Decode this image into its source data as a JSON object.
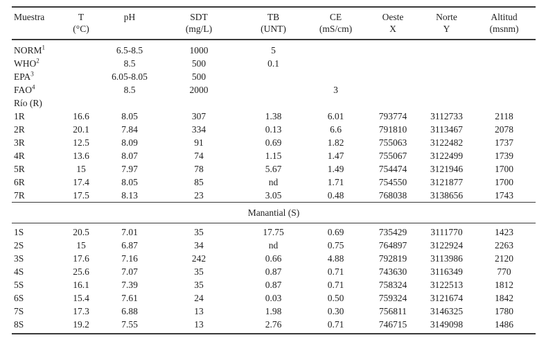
{
  "table": {
    "columns": [
      {
        "line1": "Muestra",
        "line2": ""
      },
      {
        "line1": "T",
        "line2": "(°C)"
      },
      {
        "line1": "pH",
        "line2": ""
      },
      {
        "line1": "SDT",
        "line2": "(mg/L)"
      },
      {
        "line1": "TB",
        "line2": "(UNT)"
      },
      {
        "line1": "CE",
        "line2": "(mS/cm)"
      },
      {
        "line1": "Oeste",
        "line2": "X"
      },
      {
        "line1": "Norte",
        "line2": "Y"
      },
      {
        "line1": "Altitud",
        "line2": "(msnm)"
      }
    ],
    "standards_rows": [
      {
        "label": "NORM",
        "sup": "1",
        "values": [
          "",
          "6.5-8.5",
          "1000",
          "5",
          "",
          "",
          "",
          ""
        ]
      },
      {
        "label": "WHO",
        "sup": "2",
        "values": [
          "",
          "8.5",
          "500",
          "0.1",
          "",
          "",
          "",
          ""
        ]
      },
      {
        "label": "EPA",
        "sup": "3",
        "values": [
          "",
          "6.05-8.05",
          "500",
          "",
          "",
          "",
          "",
          ""
        ]
      },
      {
        "label": "FAO",
        "sup": "4",
        "values": [
          "",
          "8.5",
          "2000",
          "",
          "3",
          "",
          "",
          ""
        ]
      }
    ],
    "rio_group_label": "Río (R)",
    "rio_rows": [
      [
        "1R",
        "16.6",
        "8.05",
        "307",
        "1.38",
        "6.01",
        "793774",
        "3112733",
        "2118"
      ],
      [
        "2R",
        "20.1",
        "7.84",
        "334",
        "0.13",
        "6.6",
        "791810",
        "3113467",
        "2078"
      ],
      [
        "3R",
        "12.5",
        "8.09",
        "91",
        "0.69",
        "1.82",
        "755063",
        "3122482",
        "1737"
      ],
      [
        "4R",
        "13.6",
        "8.07",
        "74",
        "1.15",
        "1.47",
        "755067",
        "3122499",
        "1739"
      ],
      [
        "5R",
        "15",
        "7.97",
        "78",
        "5.67",
        "1.49",
        "754474",
        "3121946",
        "1700"
      ],
      [
        "6R",
        "17.4",
        "8.05",
        "85",
        "nd",
        "1.71",
        "754550",
        "3121877",
        "1700"
      ],
      [
        "7R",
        "17.5",
        "8.13",
        "23",
        "3.05",
        "0.48",
        "768038",
        "3138656",
        "1743"
      ]
    ],
    "manantial_label": "Manantial (S)",
    "manantial_rows": [
      [
        "1S",
        "20.5",
        "7.01",
        "35",
        "17.75",
        "0.69",
        "735429",
        "3111770",
        "1423"
      ],
      [
        "2S",
        "15",
        "6.87",
        "34",
        "nd",
        "0.75",
        "764897",
        "3122924",
        "2263"
      ],
      [
        "3S",
        "17.6",
        "7.16",
        "242",
        "0.66",
        "4.88",
        "792819",
        "3113986",
        "2120"
      ],
      [
        "4S",
        "25.6",
        "7.07",
        "35",
        "0.87",
        "0.71",
        "743630",
        "3116349",
        "770"
      ],
      [
        "5S",
        "16.1",
        "7.39",
        "35",
        "0.87",
        "0.71",
        "758324",
        "3122513",
        "1812"
      ],
      [
        "6S",
        "15.4",
        "7.61",
        "24",
        "0.03",
        "0.50",
        "759324",
        "3121674",
        "1842"
      ],
      [
        "7S",
        "17.3",
        "6.88",
        "13",
        "1.98",
        "0.30",
        "756811",
        "3146325",
        "1780"
      ],
      [
        "8S",
        "19.2",
        "7.55",
        "13",
        "2.76",
        "0.71",
        "746715",
        "3149098",
        "1486"
      ]
    ]
  }
}
